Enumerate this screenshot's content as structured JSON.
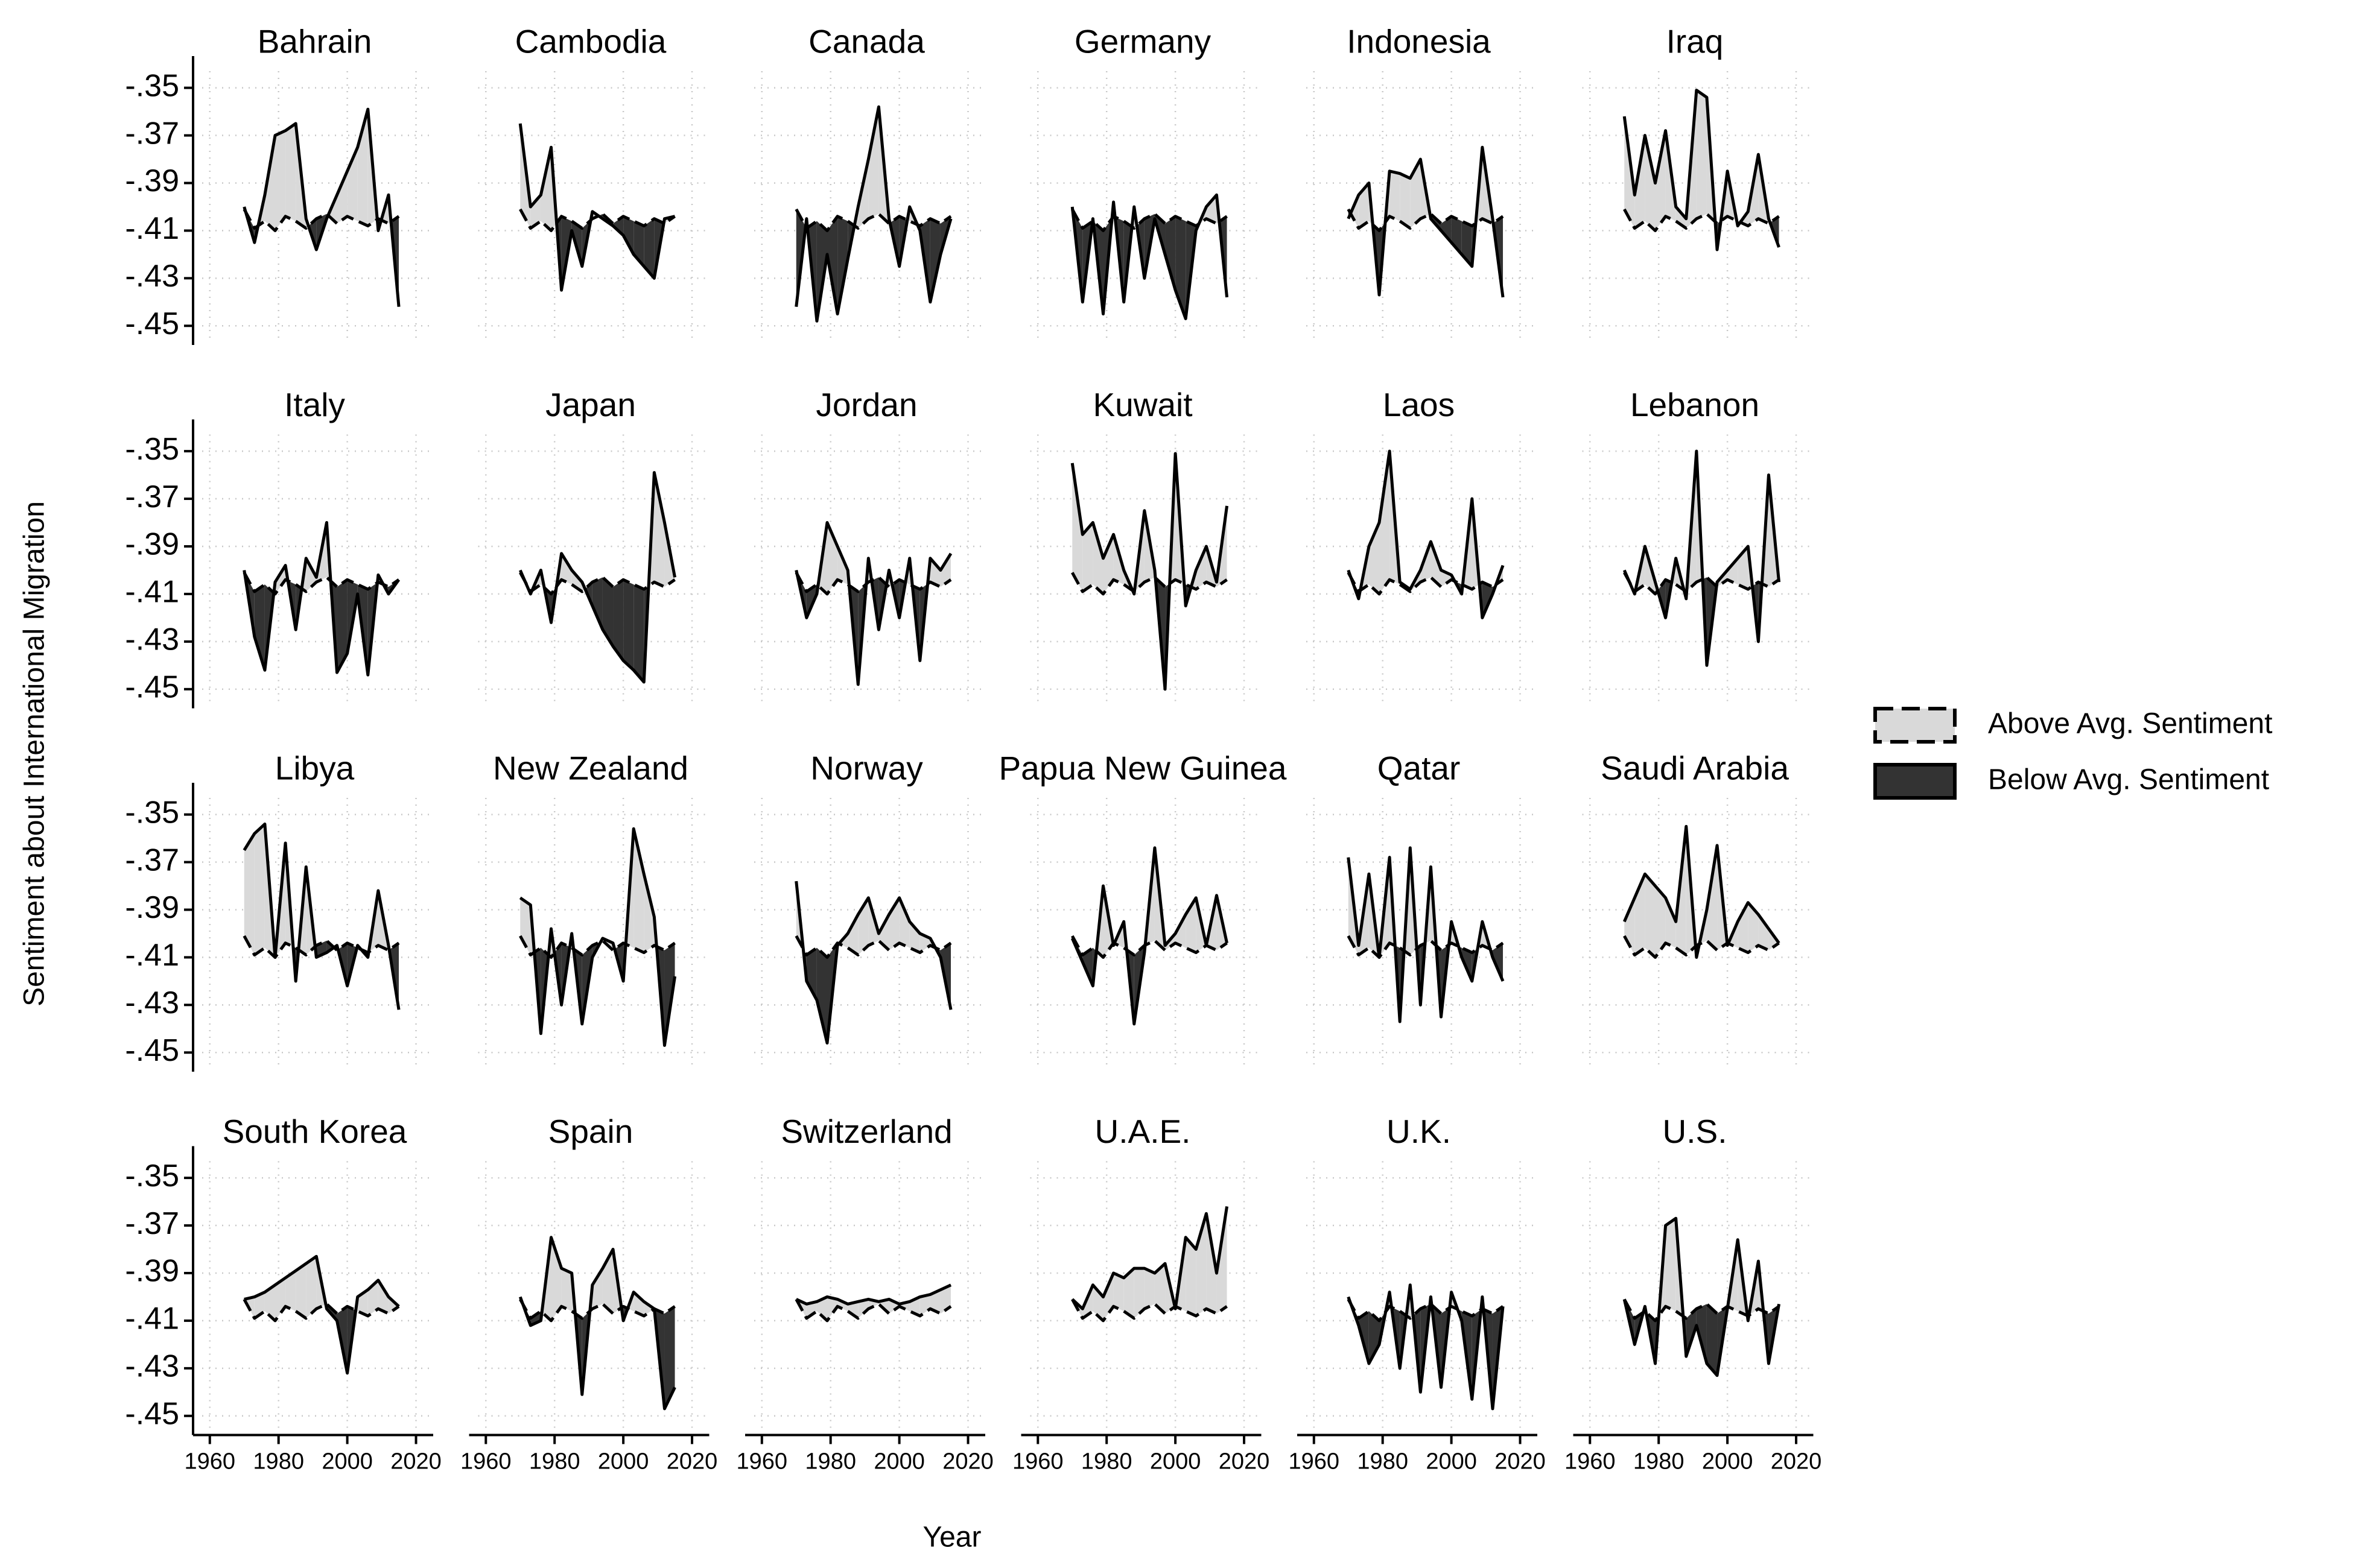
{
  "chart_data": {
    "type": "area-between",
    "y_label": "Sentiment about International Migration",
    "x_label": "Year",
    "xlim": [
      1956,
      2025
    ],
    "ylim": [
      -0.455,
      -0.343
    ],
    "xticks": [
      1960,
      1980,
      2000,
      2020
    ],
    "yticks": [
      {
        "value": -0.35,
        "label": "-.35"
      },
      {
        "value": -0.37,
        "label": "-.37"
      },
      {
        "value": -0.39,
        "label": "-.39"
      },
      {
        "value": -0.41,
        "label": "-.41"
      },
      {
        "value": -0.43,
        "label": "-.43"
      },
      {
        "value": -0.45,
        "label": "-.45"
      }
    ],
    "grid": true,
    "legend": [
      {
        "name": "Above Avg. Sentiment",
        "color": "#d9d9d9",
        "style": "dashed"
      },
      {
        "name": "Below Avg. Sentiment",
        "color": "#333333",
        "style": "solid"
      }
    ],
    "x": [
      1970,
      1973,
      1976,
      1979,
      1982,
      1985,
      1988,
      1991,
      1994,
      1997,
      2000,
      2003,
      2006,
      2009,
      2012,
      2015
    ],
    "average": [
      -0.401,
      -0.409,
      -0.406,
      -0.41,
      -0.404,
      -0.406,
      -0.409,
      -0.405,
      -0.403,
      -0.407,
      -0.404,
      -0.406,
      -0.408,
      -0.405,
      -0.407,
      -0.404
    ],
    "panels": [
      {
        "title": "Bahrain",
        "values": [
          -0.4,
          -0.415,
          -0.395,
          -0.37,
          -0.368,
          -0.365,
          -0.405,
          -0.418,
          -0.405,
          -0.395,
          -0.385,
          -0.375,
          -0.359,
          -0.41,
          -0.395,
          -0.442
        ]
      },
      {
        "title": "Cambodia",
        "values": [
          -0.365,
          -0.4,
          -0.395,
          -0.375,
          -0.435,
          -0.41,
          -0.425,
          -0.402,
          -0.405,
          -0.408,
          -0.412,
          -0.42,
          -0.425,
          -0.43,
          -0.405,
          -0.404
        ]
      },
      {
        "title": "Canada",
        "values": [
          -0.442,
          -0.405,
          -0.448,
          -0.42,
          -0.445,
          -0.422,
          -0.4,
          -0.38,
          -0.358,
          -0.405,
          -0.425,
          -0.4,
          -0.41,
          -0.44,
          -0.42,
          -0.405
        ]
      },
      {
        "title": "Germany",
        "values": [
          -0.4,
          -0.44,
          -0.405,
          -0.445,
          -0.398,
          -0.44,
          -0.4,
          -0.43,
          -0.405,
          -0.42,
          -0.435,
          -0.447,
          -0.41,
          -0.4,
          -0.395,
          -0.438
        ]
      },
      {
        "title": "Indonesia",
        "values": [
          -0.405,
          -0.395,
          -0.39,
          -0.437,
          -0.385,
          -0.386,
          -0.388,
          -0.38,
          -0.405,
          -0.41,
          -0.415,
          -0.42,
          -0.425,
          -0.375,
          -0.405,
          -0.438
        ]
      },
      {
        "title": "Iraq",
        "values": [
          -0.362,
          -0.395,
          -0.37,
          -0.39,
          -0.368,
          -0.4,
          -0.405,
          -0.351,
          -0.354,
          -0.418,
          -0.385,
          -0.408,
          -0.402,
          -0.378,
          -0.405,
          -0.417
        ]
      },
      {
        "title": "Italy",
        "values": [
          -0.4,
          -0.428,
          -0.442,
          -0.405,
          -0.398,
          -0.425,
          -0.395,
          -0.403,
          -0.38,
          -0.443,
          -0.435,
          -0.41,
          -0.444,
          -0.402,
          -0.41,
          -0.404
        ]
      },
      {
        "title": "Japan",
        "values": [
          -0.4,
          -0.41,
          -0.4,
          -0.422,
          -0.393,
          -0.4,
          -0.405,
          -0.415,
          -0.425,
          -0.432,
          -0.438,
          -0.442,
          -0.447,
          -0.359,
          -0.38,
          -0.403
        ]
      },
      {
        "title": "Jordan",
        "values": [
          -0.4,
          -0.42,
          -0.41,
          -0.38,
          -0.39,
          -0.4,
          -0.448,
          -0.395,
          -0.425,
          -0.4,
          -0.42,
          -0.395,
          -0.438,
          -0.395,
          -0.4,
          -0.393
        ]
      },
      {
        "title": "Kuwait",
        "values": [
          -0.355,
          -0.385,
          -0.38,
          -0.395,
          -0.385,
          -0.4,
          -0.41,
          -0.375,
          -0.4,
          -0.45,
          -0.351,
          -0.415,
          -0.4,
          -0.39,
          -0.405,
          -0.373
        ]
      },
      {
        "title": "Laos",
        "values": [
          -0.4,
          -0.412,
          -0.39,
          -0.38,
          -0.35,
          -0.405,
          -0.408,
          -0.4,
          -0.388,
          -0.4,
          -0.402,
          -0.41,
          -0.37,
          -0.42,
          -0.41,
          -0.398
        ]
      },
      {
        "title": "Lebanon",
        "values": [
          -0.4,
          -0.41,
          -0.39,
          -0.405,
          -0.42,
          -0.395,
          -0.412,
          -0.35,
          -0.44,
          -0.405,
          -0.4,
          -0.395,
          -0.39,
          -0.43,
          -0.36,
          -0.405
        ]
      },
      {
        "title": "Libya",
        "values": [
          -0.365,
          -0.358,
          -0.354,
          -0.41,
          -0.362,
          -0.42,
          -0.372,
          -0.41,
          -0.408,
          -0.405,
          -0.422,
          -0.405,
          -0.41,
          -0.382,
          -0.405,
          -0.432
        ]
      },
      {
        "title": "New Zealand",
        "values": [
          -0.385,
          -0.388,
          -0.442,
          -0.398,
          -0.43,
          -0.4,
          -0.438,
          -0.41,
          -0.402,
          -0.404,
          -0.42,
          -0.356,
          -0.375,
          -0.393,
          -0.447,
          -0.418
        ]
      },
      {
        "title": "Norway",
        "values": [
          -0.378,
          -0.42,
          -0.428,
          -0.446,
          -0.405,
          -0.4,
          -0.392,
          -0.385,
          -0.4,
          -0.392,
          -0.385,
          -0.395,
          -0.4,
          -0.402,
          -0.41,
          -0.432
        ]
      },
      {
        "title": "Papua New Guinea",
        "values": [
          -0.402,
          -0.412,
          -0.422,
          -0.38,
          -0.405,
          -0.395,
          -0.438,
          -0.408,
          -0.364,
          -0.405,
          -0.4,
          -0.392,
          -0.385,
          -0.405,
          -0.384,
          -0.404
        ]
      },
      {
        "title": "Qatar",
        "values": [
          -0.368,
          -0.405,
          -0.375,
          -0.41,
          -0.368,
          -0.437,
          -0.364,
          -0.43,
          -0.372,
          -0.435,
          -0.395,
          -0.41,
          -0.42,
          -0.395,
          -0.41,
          -0.42
        ]
      },
      {
        "title": "Saudi Arabia",
        "values": [
          -0.395,
          -0.385,
          -0.375,
          -0.38,
          -0.385,
          -0.395,
          -0.355,
          -0.41,
          -0.39,
          -0.363,
          -0.405,
          -0.395,
          -0.387,
          -0.392,
          -0.398,
          -0.404
        ]
      },
      {
        "title": "South Korea",
        "values": [
          -0.401,
          -0.4,
          -0.398,
          -0.395,
          -0.392,
          -0.389,
          -0.386,
          -0.383,
          -0.405,
          -0.41,
          -0.432,
          -0.4,
          -0.397,
          -0.393,
          -0.4,
          -0.404
        ]
      },
      {
        "title": "Spain",
        "values": [
          -0.4,
          -0.412,
          -0.41,
          -0.375,
          -0.388,
          -0.39,
          -0.441,
          -0.395,
          -0.388,
          -0.38,
          -0.41,
          -0.398,
          -0.402,
          -0.405,
          -0.447,
          -0.438
        ]
      },
      {
        "title": "Switzerland",
        "values": [
          -0.401,
          -0.403,
          -0.402,
          -0.4,
          -0.401,
          -0.403,
          -0.402,
          -0.401,
          -0.402,
          -0.401,
          -0.403,
          -0.402,
          -0.4,
          -0.399,
          -0.397,
          -0.395
        ]
      },
      {
        "title": "U.A.E.",
        "values": [
          -0.401,
          -0.405,
          -0.395,
          -0.4,
          -0.39,
          -0.392,
          -0.388,
          -0.388,
          -0.39,
          -0.386,
          -0.405,
          -0.375,
          -0.38,
          -0.365,
          -0.39,
          -0.362
        ]
      },
      {
        "title": "U.K.",
        "values": [
          -0.4,
          -0.412,
          -0.428,
          -0.42,
          -0.398,
          -0.43,
          -0.395,
          -0.44,
          -0.4,
          -0.438,
          -0.398,
          -0.41,
          -0.443,
          -0.4,
          -0.447,
          -0.404
        ]
      },
      {
        "title": "U.S.",
        "values": [
          -0.401,
          -0.42,
          -0.404,
          -0.428,
          -0.37,
          -0.367,
          -0.425,
          -0.412,
          -0.428,
          -0.433,
          -0.405,
          -0.376,
          -0.41,
          -0.385,
          -0.428,
          -0.403
        ]
      }
    ]
  }
}
